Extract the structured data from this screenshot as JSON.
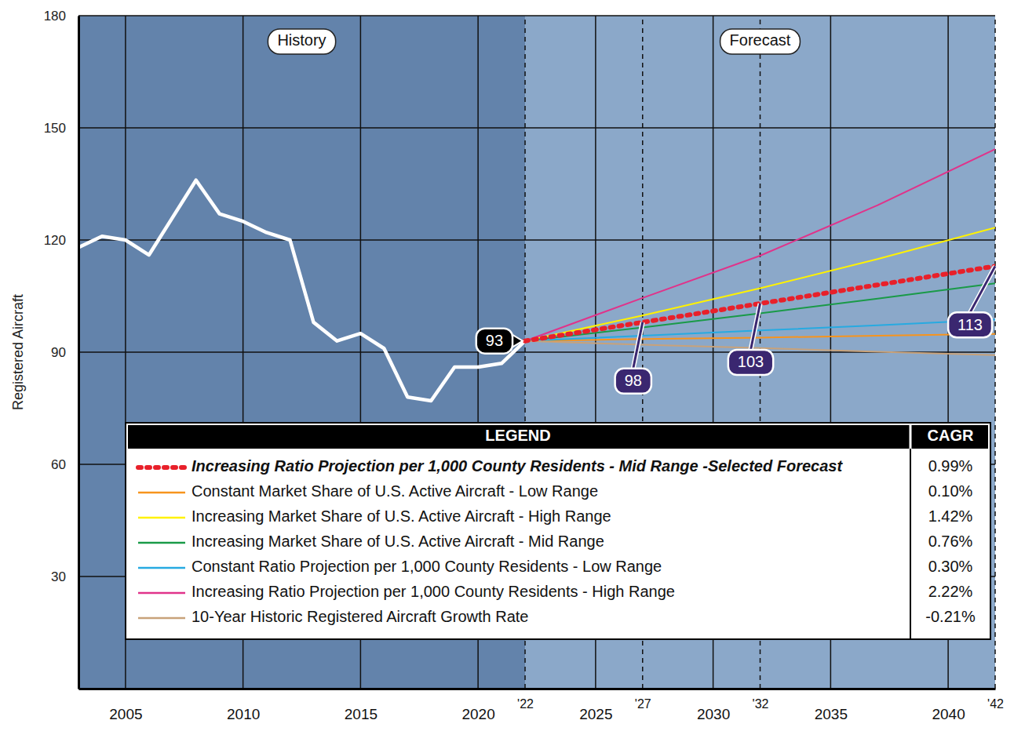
{
  "chart_data": {
    "type": "line",
    "y_label": "Registered Aircraft",
    "annotations": [
      {
        "text": "History"
      },
      {
        "text": "Forecast"
      }
    ],
    "legend_title": "LEGEND",
    "legend_value_title": "CAGR",
    "legend": "bottom",
    "grid": true,
    "xlim": [
      2003,
      2042
    ],
    "ylim": [
      0,
      180
    ],
    "xticks": [
      2005,
      2010,
      2015,
      2020,
      {
        "value": 2022,
        "label": "'22"
      },
      2025,
      {
        "value": 2027,
        "label": "'27"
      },
      2030,
      {
        "value": 2032,
        "label": "'32"
      },
      2035,
      2040,
      {
        "value": 2042,
        "label": "'42"
      }
    ],
    "yticks": [
      30,
      60,
      90,
      120,
      150,
      180
    ],
    "series": [
      {
        "color": "#ffffff",
        "line_style": "solid",
        "x": [
          2003,
          2004,
          2005,
          2006,
          2007,
          2008,
          2009,
          2010,
          2011,
          2012,
          2013,
          2014,
          2015,
          2016,
          2017,
          2018,
          2019,
          2020,
          2021,
          2022
        ],
        "values": [
          118,
          121,
          120,
          116,
          126,
          136,
          127,
          125,
          122,
          120,
          98,
          93,
          95,
          91,
          78,
          77,
          86,
          86,
          87,
          93
        ]
      },
      {
        "name": "Increasing Ratio Projection per 1,000 County Residents - Mid Range -Selected Forecast",
        "color": "#e8202a",
        "line_style": "dotted",
        "cagr": "0.99%",
        "x": [
          2022,
          2027,
          2032,
          2037,
          2042
        ],
        "values": [
          93,
          98,
          103,
          108,
          113
        ]
      },
      {
        "name": "Constant Market Share of U.S. Active Aircraft - Low Range",
        "color": "#f7941d",
        "line_style": "solid",
        "cagr": "0.10%",
        "x": [
          2022,
          2027,
          2032,
          2037,
          2042
        ],
        "values": [
          93,
          93.5,
          93.9,
          94.4,
          94.9
        ]
      },
      {
        "name": "Increasing Market Share of U.S. Active Aircraft - High Range",
        "color": "#fff200",
        "line_style": "solid",
        "cagr": "1.42%",
        "x": [
          2022,
          2027,
          2032,
          2037,
          2042
        ],
        "values": [
          93,
          99.8,
          107.1,
          114.9,
          123.3
        ]
      },
      {
        "name": "Increasing Market Share of U.S. Active Aircraft - Mid Range",
        "color": "#1a9a48",
        "line_style": "solid",
        "cagr": "0.76%",
        "x": [
          2022,
          2027,
          2032,
          2037,
          2042
        ],
        "values": [
          93,
          96.6,
          100.4,
          104.3,
          108.4
        ]
      },
      {
        "name": "Constant Ratio Projection per 1,000 County Residents - Low Range",
        "color": "#27aae1",
        "line_style": "solid",
        "cagr": "0.30%",
        "x": [
          2022,
          2027,
          2032,
          2037,
          2042
        ],
        "values": [
          93,
          94.4,
          95.8,
          97.2,
          98.7
        ]
      },
      {
        "name": "Increasing Ratio Projection per 1,000 County Residents - High Range",
        "color": "#e0338a",
        "line_style": "solid",
        "cagr": "2.22%",
        "x": [
          2022,
          2027,
          2032,
          2037,
          2042
        ],
        "values": [
          93,
          104.5,
          115.8,
          129.3,
          144.3
        ]
      },
      {
        "name": "10-Year Historic Registered Aircraft Growth Rate",
        "color": "#c8a27a",
        "line_style": "solid",
        "cagr": "-0.21%",
        "x": [
          2022,
          2027,
          2032,
          2037,
          2042
        ],
        "values": [
          93,
          92.0,
          91.1,
          90.1,
          89.2
        ]
      }
    ],
    "callouts": [
      {
        "x": 2022,
        "y": 93,
        "color": "#000000"
      },
      {
        "x": 2027,
        "y": 98,
        "color": "#3a2770"
      },
      {
        "x": 2032,
        "y": 103,
        "color": "#3a2770"
      },
      {
        "x": 2042,
        "y": 113,
        "color": "#3a2770"
      }
    ]
  }
}
